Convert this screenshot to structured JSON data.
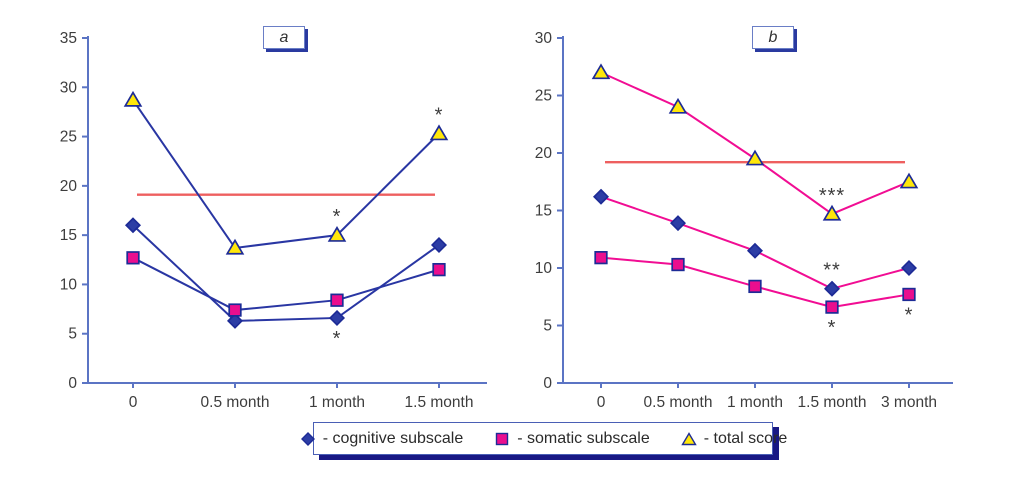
{
  "figure": {
    "background": "#ffffff"
  },
  "theme": {
    "axis_color": "#5b74c4",
    "label_color": "#3d3d3d",
    "marker_border": "#1d2b96",
    "annotation_color": "#3d3d3d"
  },
  "chart_data": [
    {
      "id": "a",
      "type": "line",
      "title": "a",
      "categories": [
        "0",
        "0.5 month",
        "1 month",
        "1.5 month"
      ],
      "ylim": [
        0,
        35
      ],
      "ytick_step": 5,
      "grid": false,
      "line_color": "#2936a3",
      "reference_line": {
        "value": 19.1,
        "color": "#ee5f5f"
      },
      "series": [
        {
          "name": "cognitive subscale",
          "marker": "diamond",
          "marker_color": "#2c3da5",
          "values": [
            16,
            6.3,
            6.6,
            14
          ]
        },
        {
          "name": "somatic subscale",
          "marker": "square",
          "marker_color": "#ea0e8e",
          "values": [
            12.7,
            7.4,
            8.4,
            11.5
          ]
        },
        {
          "name": "total score",
          "marker": "triangle",
          "marker_color": "#ffe70a",
          "values": [
            28.7,
            13.7,
            15,
            25.3
          ]
        }
      ],
      "annotations": [
        {
          "series": 2,
          "index": 2,
          "text": "*",
          "position": "above"
        },
        {
          "series": 2,
          "index": 3,
          "text": "*",
          "position": "above"
        },
        {
          "series": 0,
          "index": 2,
          "text": "*",
          "position": "below"
        }
      ]
    },
    {
      "id": "b",
      "type": "line",
      "title": "b",
      "categories": [
        "0",
        "0.5 month",
        "1 month",
        "1.5 month",
        "3 month"
      ],
      "ylim": [
        0,
        30
      ],
      "ytick_step": 5,
      "grid": false,
      "line_color": "#f10d93",
      "reference_line": {
        "value": 19.2,
        "color": "#ee5f5f"
      },
      "series": [
        {
          "name": "cognitive subscale",
          "marker": "diamond",
          "marker_color": "#2c3da5",
          "values": [
            16.2,
            13.9,
            11.5,
            8.2,
            10
          ]
        },
        {
          "name": "somatic subscale",
          "marker": "square",
          "marker_color": "#ea0e8e",
          "values": [
            10.9,
            10.3,
            8.4,
            6.6,
            7.7
          ]
        },
        {
          "name": "total score",
          "marker": "triangle",
          "marker_color": "#ffe70a",
          "values": [
            27,
            24,
            19.5,
            14.7,
            17.5
          ]
        }
      ],
      "annotations": [
        {
          "series": 2,
          "index": 3,
          "text": "***",
          "position": "above"
        },
        {
          "series": 0,
          "index": 3,
          "text": "**",
          "position": "above"
        },
        {
          "series": 1,
          "index": 3,
          "text": "*",
          "position": "below"
        },
        {
          "series": 1,
          "index": 4,
          "text": "*",
          "position": "below"
        }
      ]
    }
  ],
  "legend": {
    "items": [
      {
        "marker": "diamond",
        "color": "#2c3da5",
        "label": "- cognitive subscale"
      },
      {
        "marker": "square",
        "color": "#ea0e8e",
        "label": "- somatic subscale"
      },
      {
        "marker": "triangle",
        "color": "#ffe70a",
        "label": "- total score"
      }
    ],
    "border_color": "#4a5fb5",
    "shadow_color": "#181884"
  }
}
